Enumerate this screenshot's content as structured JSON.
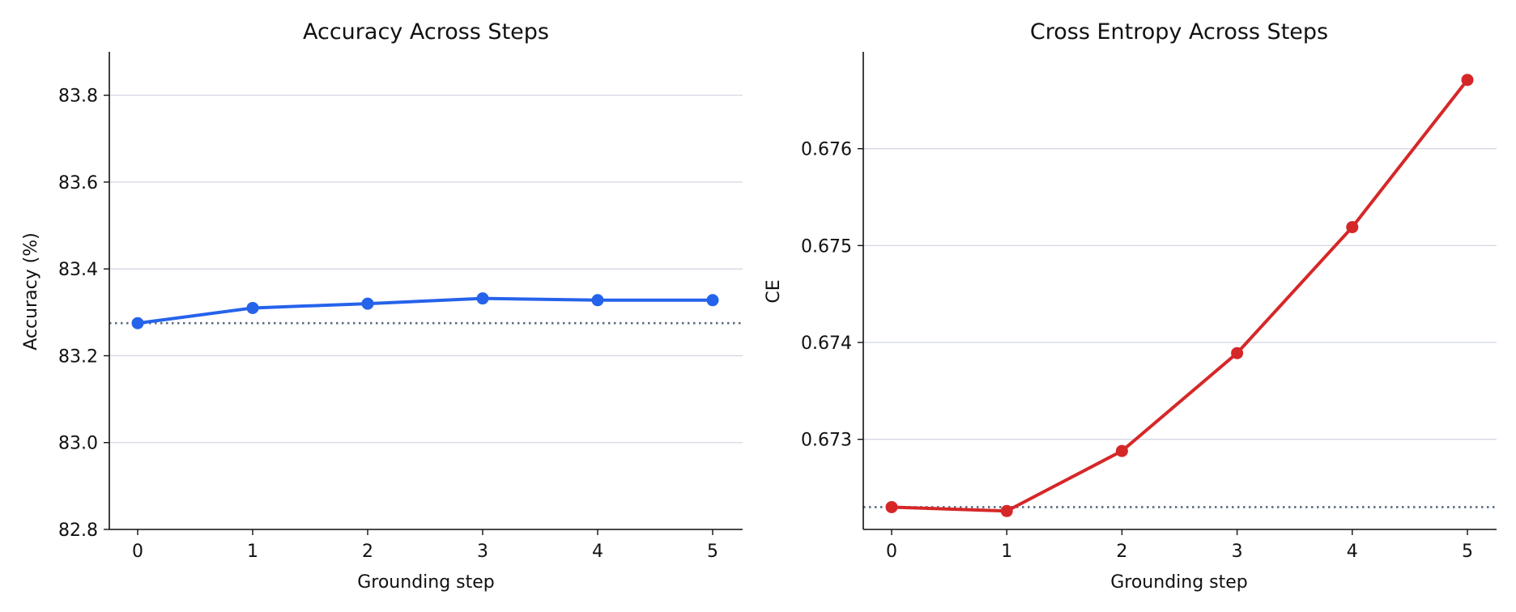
{
  "chart_data": [
    {
      "type": "line",
      "title": "Accuracy Across Steps",
      "xlabel": "Grounding step",
      "ylabel": "Accuracy (%)",
      "x": [
        0,
        1,
        2,
        3,
        4,
        5
      ],
      "series": [
        {
          "values": [
            83.275,
            83.31,
            83.32,
            83.332,
            83.328,
            83.328
          ],
          "color": "#2563eb"
        }
      ],
      "baseline": 83.275,
      "baseline_color": "#5b6b82",
      "ylim": [
        82.8,
        83.9
      ],
      "yticks": [
        "82.8",
        "83.0",
        "83.2",
        "83.4",
        "83.6",
        "83.8"
      ],
      "xticks": [
        "0",
        "1",
        "2",
        "3",
        "4",
        "5"
      ],
      "grid": "horizontal",
      "grid_color": "#d4d6e4"
    },
    {
      "type": "line",
      "title": "Cross Entropy Across Steps",
      "xlabel": "Grounding step",
      "ylabel": "CE",
      "x": [
        0,
        1,
        2,
        3,
        4,
        5
      ],
      "series": [
        {
          "values": [
            0.6723,
            0.67226,
            0.67288,
            0.67389,
            0.67519,
            0.67671
          ],
          "color": "#d62728"
        }
      ],
      "baseline": 0.6723,
      "baseline_color": "#5b6b82",
      "ylim": [
        0.67207,
        0.677
      ],
      "yticks": [
        "0.673",
        "0.674",
        "0.675",
        "0.676"
      ],
      "xticks": [
        "0",
        "1",
        "2",
        "3",
        "4",
        "5"
      ],
      "grid": "horizontal",
      "grid_color": "#d4d6e4"
    }
  ]
}
